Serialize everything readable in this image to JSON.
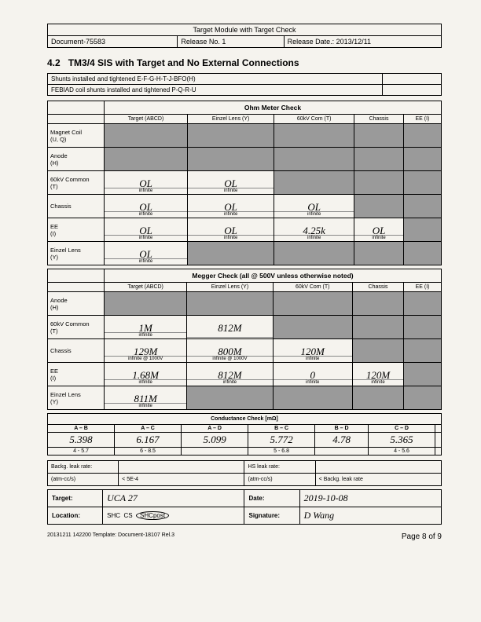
{
  "header": {
    "title": "Target Module with Target Check",
    "doc": "Document-75583",
    "release": "Release No. 1",
    "date_label": "Release Date.: 2013/12/11"
  },
  "section": {
    "num": "4.2",
    "title": "TM3/4 SIS with Target and No External Connections"
  },
  "shunts": {
    "row1": "Shunts installed and tightened E-F-G-H-T-J-BFO(H)",
    "row2": "FEBIAD coil shunts installed and tightened P-Q-R-U"
  },
  "ohm": {
    "title": "Ohm Meter Check",
    "cols": [
      "Target (ABCD)",
      "Einzel Lens (Y)",
      "60kV Com (T)",
      "Chassis",
      "EE (I)"
    ],
    "rows": [
      {
        "label": "Magnet Coil\n(U, Q)",
        "cells": [
          null,
          null,
          null,
          null,
          null
        ]
      },
      {
        "label": "Anode\n(H)",
        "cells": [
          null,
          null,
          null,
          null,
          null
        ]
      },
      {
        "label": "60kV Common\n(T)",
        "cells": [
          {
            "v": "OL",
            "c": "infinite"
          },
          {
            "v": "OL",
            "c": "infinite"
          },
          null,
          null,
          null
        ]
      },
      {
        "label": "Chassis",
        "cells": [
          {
            "v": "OL",
            "c": "infinite"
          },
          {
            "v": "OL",
            "c": "infinite"
          },
          {
            "v": "OL",
            "c": "infinite"
          },
          null,
          null
        ]
      },
      {
        "label": "EE\n(I)",
        "cells": [
          {
            "v": "OL",
            "c": "infinite"
          },
          {
            "v": "OL",
            "c": "infinite"
          },
          {
            "v": "4.25k",
            "c": "infinite"
          },
          {
            "v": "OL",
            "c": "infinite"
          },
          null
        ]
      },
      {
        "label": "Einzel Lens\n(Y)",
        "cells": [
          {
            "v": "OL",
            "c": "infinite"
          },
          null,
          null,
          null,
          null
        ]
      }
    ]
  },
  "megger": {
    "title": "Megger Check (all @ 500V unless otherwise noted)",
    "cols": [
      "Target (ABCD)",
      "Einzel Lens (Y)",
      "60kV Com (T)",
      "Chassis",
      "EE (I)"
    ],
    "rows": [
      {
        "label": "Anode\n(H)",
        "cells": [
          null,
          null,
          null,
          null,
          null
        ]
      },
      {
        "label": "60kV Common\n(T)",
        "cells": [
          {
            "v": "1M",
            "c": "infinite"
          },
          {
            "v": "812M",
            "c": ""
          },
          null,
          null,
          null
        ]
      },
      {
        "label": "Chassis",
        "cells": [
          {
            "v": "129M",
            "c": "infinite @ 1000V"
          },
          {
            "v": "800M",
            "c": "infinite @ 1000V"
          },
          {
            "v": "120M",
            "c": "infinite"
          },
          null,
          null
        ]
      },
      {
        "label": "EE\n(I)",
        "cells": [
          {
            "v": "1.68M",
            "c": "infinite"
          },
          {
            "v": "812M",
            "c": "infinite"
          },
          {
            "v": "0",
            "c": "infinite"
          },
          {
            "v": "120M",
            "c": "infinite"
          },
          null
        ]
      },
      {
        "label": "Einzel Lens\n(Y)",
        "cells": [
          {
            "v": "811M",
            "c": "infinite"
          },
          null,
          null,
          null,
          null
        ]
      }
    ]
  },
  "cond": {
    "title": "Conductance Check [mΩ]",
    "cols": [
      "A – B",
      "A – C",
      "A – D",
      "B – C",
      "B – D",
      "C – D",
      ""
    ],
    "vals": [
      "5.398",
      "6.167",
      "5.099",
      "5.772",
      "4.78",
      "5.365",
      ""
    ],
    "ranges": [
      "4 - 5.7",
      "6 - 8.5",
      "",
      "5 - 6.8",
      "",
      "4 - 5.6",
      ""
    ]
  },
  "leak": {
    "l1": "Backg. leak rate:",
    "l2": "(atm-cc/s)",
    "l3": "< 5E-4",
    "r1": "HS leak rate:",
    "r2": "(atm-cc/s)",
    "r3": "< Backg. leak rate"
  },
  "sig": {
    "target_l": "Target:",
    "target_v": "UCA 27",
    "date_l": "Date:",
    "date_v": "2019-10-08",
    "loc_l": "Location:",
    "loc_v1": "SHC",
    "loc_v2": "CS",
    "loc_v3": "SHCpost",
    "sig_l": "Signature:",
    "sig_v": "D Wang"
  },
  "footer": {
    "left": "20131211 142200 Template: Document-18107 Rel.3",
    "right": "Page 8 of 9"
  }
}
